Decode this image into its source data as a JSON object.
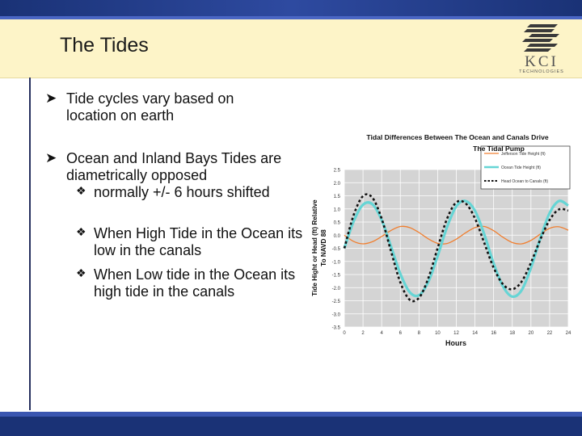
{
  "slide": {
    "title": "The Tides",
    "logo": {
      "name": "kci-logo-icon",
      "text": "KCI",
      "subtext": "TECHNOLOGIES"
    },
    "bullets": [
      {
        "icon": "arrow-bullet-icon",
        "text": "Tide cycles vary based on location on earth"
      },
      {
        "icon": "arrow-bullet-icon",
        "text": "Ocean and Inland Bays Tides are diametrically opposed",
        "sub": [
          {
            "icon": "diamond-bullet-icon",
            "text": "normally +/- 6 hours shifted"
          },
          {
            "icon": "diamond-bullet-icon",
            "text": "When High Tide in the Ocean its low in the canals"
          },
          {
            "icon": "diamond-bullet-icon",
            "text": "When Low tide in the Ocean its high tide in the canals"
          }
        ]
      }
    ],
    "colors": {
      "navy": "#1a3276",
      "header_bg": "#fdf4c8",
      "jefferson": "#f07f30",
      "ocean": "#66d5d5",
      "head": "#111111"
    }
  },
  "chart_data": {
    "type": "line",
    "title": "Tidal Differences Between The Ocean and Canals Drive The Tidal Pump",
    "xlabel": "Hours",
    "ylabel": "Tide Hight or Head (ft) Relative To NAVD 88",
    "xlim": [
      0,
      24
    ],
    "ylim": [
      -3.5,
      2.5
    ],
    "xticks": [
      0,
      2,
      4,
      6,
      8,
      10,
      12,
      14,
      16,
      18,
      20,
      22,
      24
    ],
    "yticks": [
      2.5,
      2.0,
      1.5,
      1.0,
      0.5,
      0.0,
      -0.5,
      -1.0,
      -1.5,
      -2.0,
      -2.5,
      -3.0,
      -3.5
    ],
    "ytick_labels": [
      "2.5",
      "2.0",
      "1.5",
      "1.0",
      "0.5",
      "0.0",
      "-0.5",
      "-1.0",
      "-1.5",
      "-2.0",
      "-2.5",
      "-3.0",
      "-3.5"
    ],
    "grid": true,
    "legend_position": "top-right",
    "x": [
      0,
      1,
      2,
      3,
      4,
      5,
      6,
      7,
      8,
      9,
      10,
      11,
      12,
      13,
      14,
      15,
      16,
      17,
      18,
      19,
      20,
      21,
      22,
      23,
      24
    ],
    "series": [
      {
        "name": "Jefferson Tide Height (ft)",
        "color": "#f07f30",
        "style": "solid",
        "values": [
          0.0,
          -0.24,
          -0.33,
          -0.25,
          -0.05,
          0.18,
          0.33,
          0.29,
          0.1,
          -0.14,
          -0.31,
          -0.32,
          -0.15,
          0.09,
          0.29,
          0.33,
          0.17,
          -0.08,
          -0.28,
          -0.33,
          -0.2,
          0.04,
          0.26,
          0.32,
          0.19
        ]
      },
      {
        "name": "Ocean Tide Height (ft)",
        "color": "#66d5d5",
        "style": "solid",
        "values": [
          -0.5,
          0.53,
          1.16,
          1.18,
          0.58,
          -0.43,
          -1.47,
          -2.17,
          -2.29,
          -1.78,
          -0.8,
          0.3,
          1.1,
          1.3,
          0.93,
          0.03,
          -1.07,
          -1.95,
          -2.34,
          -2.1,
          -1.25,
          -0.13,
          0.84,
          1.3,
          1.13
        ]
      },
      {
        "name": "Head Ocean to Canals (ft)",
        "color": "#111111",
        "style": "dashed",
        "values": [
          -0.5,
          0.77,
          1.49,
          1.43,
          0.63,
          -0.61,
          -1.8,
          -2.46,
          -2.39,
          -1.64,
          -0.49,
          0.62,
          1.25,
          1.21,
          0.64,
          -0.3,
          -1.24,
          -1.87,
          -2.06,
          -1.77,
          -1.05,
          -0.17,
          0.58,
          0.98,
          0.94
        ]
      }
    ]
  }
}
